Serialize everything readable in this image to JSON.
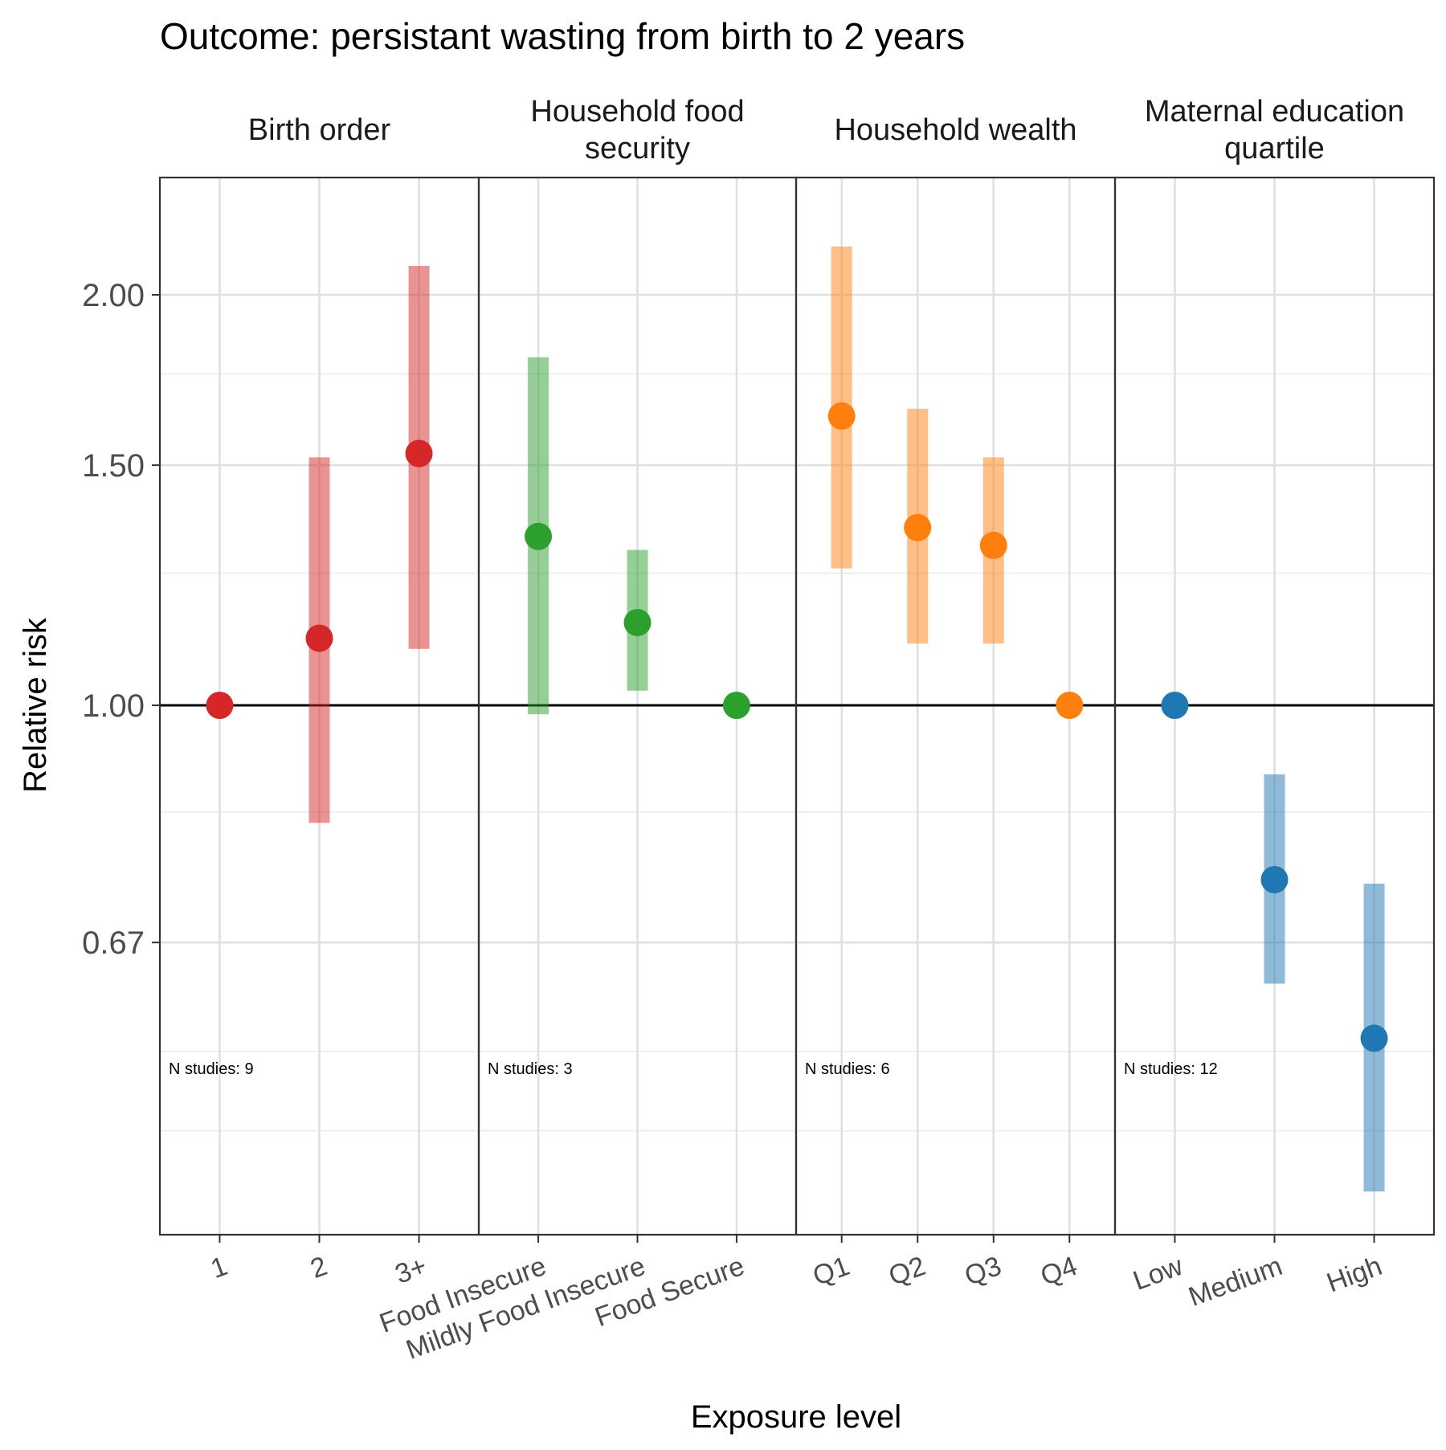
{
  "chart_data": {
    "type": "scatter",
    "title": "Outcome: persistant wasting from birth to 2 years",
    "xlabel": "Exposure level",
    "ylabel": "Relative risk",
    "y_scale": "log",
    "ylim": [
      0.45,
      2.4
    ],
    "y_ticks": [
      {
        "value": 2.0,
        "label": "2.00"
      },
      {
        "value": 1.5,
        "label": "1.50"
      },
      {
        "value": 1.0,
        "label": "1.00"
      },
      {
        "value": 0.67,
        "label": "0.67"
      }
    ],
    "y_minor_gridlines": [
      1.75,
      1.25,
      0.835,
      0.5575,
      0.4875
    ],
    "reference_line": 1.0,
    "grid": true,
    "panels": [
      {
        "facet_label": "Birth order",
        "color": "#d62728",
        "n_label": "N studies: 9",
        "categories": [
          "1",
          "2",
          "3+"
        ],
        "points": [
          {
            "x": "1",
            "rr": 1.0,
            "ci_lower": 1.0,
            "ci_upper": 1.0
          },
          {
            "x": "2",
            "rr": 1.12,
            "ci_lower": 0.82,
            "ci_upper": 1.52
          },
          {
            "x": "3+",
            "rr": 1.53,
            "ci_lower": 1.1,
            "ci_upper": 2.1
          }
        ]
      },
      {
        "facet_label": "Household food security",
        "color": "#2ca02c",
        "n_label": "N studies: 3",
        "categories": [
          "Food Insecure",
          "Mildly Food Insecure",
          "Food Secure"
        ],
        "points": [
          {
            "x": "Food Insecure",
            "rr": 1.33,
            "ci_lower": 0.985,
            "ci_upper": 1.8
          },
          {
            "x": "Mildly Food Insecure",
            "rr": 1.15,
            "ci_lower": 1.025,
            "ci_upper": 1.3
          },
          {
            "x": "Food Secure",
            "rr": 1.0,
            "ci_lower": 1.0,
            "ci_upper": 1.0
          }
        ]
      },
      {
        "facet_label": "Household wealth",
        "color": "#ff7f0e",
        "n_label": "N studies: 6",
        "categories": [
          "Q1",
          "Q2",
          "Q3",
          "Q4"
        ],
        "points": [
          {
            "x": "Q1",
            "rr": 1.63,
            "ci_lower": 1.26,
            "ci_upper": 2.17
          },
          {
            "x": "Q2",
            "rr": 1.35,
            "ci_lower": 1.11,
            "ci_upper": 1.65
          },
          {
            "x": "Q3",
            "rr": 1.31,
            "ci_lower": 1.11,
            "ci_upper": 1.52
          },
          {
            "x": "Q4",
            "rr": 1.0,
            "ci_lower": 1.0,
            "ci_upper": 1.0
          }
        ]
      },
      {
        "facet_label": "Maternal education quartile",
        "color": "#1f77b4",
        "n_label": "N studies: 12",
        "categories": [
          "Low",
          "Medium",
          "High"
        ],
        "points": [
          {
            "x": "Low",
            "rr": 1.0,
            "ci_lower": 1.0,
            "ci_upper": 1.0
          },
          {
            "x": "Medium",
            "rr": 0.745,
            "ci_lower": 0.625,
            "ci_upper": 0.89
          },
          {
            "x": "High",
            "rr": 0.57,
            "ci_lower": 0.44,
            "ci_upper": 0.74
          }
        ]
      }
    ]
  }
}
